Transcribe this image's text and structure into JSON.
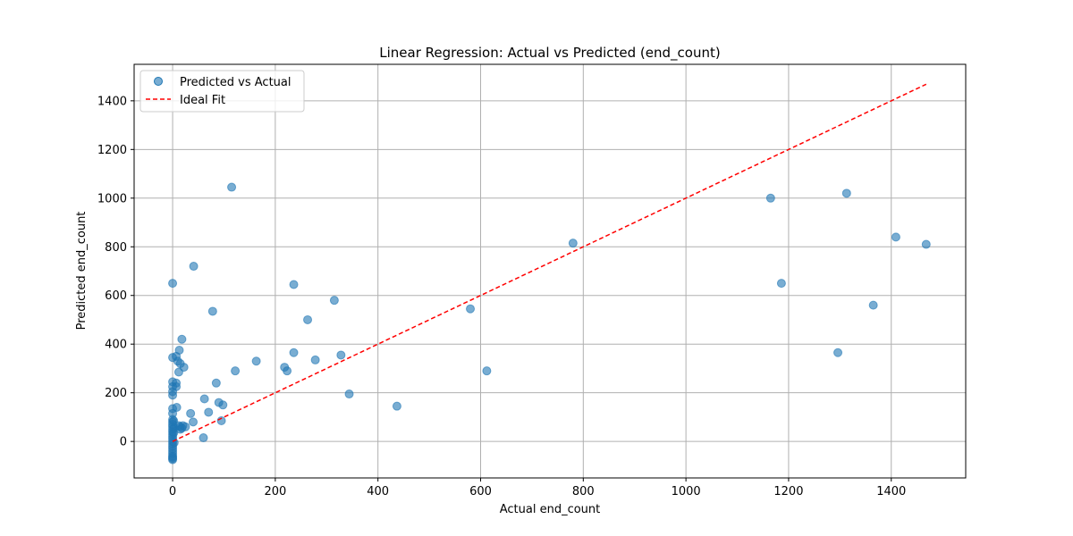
{
  "chart_data": {
    "type": "scatter",
    "title": "Linear Regression: Actual vs Predicted (end_count)",
    "xlabel": "Actual end_count",
    "ylabel": "Predicted end_count",
    "xlim": [
      -75,
      1545
    ],
    "ylim": [
      -150,
      1550
    ],
    "xticks": [
      0,
      200,
      400,
      600,
      800,
      1000,
      1200,
      1400
    ],
    "yticks": [
      0,
      200,
      400,
      600,
      800,
      1000,
      1200,
      1400
    ],
    "grid": true,
    "legend_position": "top-left",
    "colors": {
      "points": "#1f77b4",
      "ideal_fit": "#ff0000"
    },
    "series": [
      {
        "name": "Predicted vs Actual",
        "kind": "scatter",
        "points": [
          [
            0,
            650
          ],
          [
            0,
            345
          ],
          [
            0,
            245
          ],
          [
            0,
            225
          ],
          [
            0,
            205
          ],
          [
            0,
            190
          ],
          [
            0,
            135
          ],
          [
            0,
            115
          ],
          [
            0,
            90
          ],
          [
            0,
            80
          ],
          [
            0,
            70
          ],
          [
            0,
            60
          ],
          [
            0,
            50
          ],
          [
            0,
            40
          ],
          [
            0,
            30
          ],
          [
            0,
            20
          ],
          [
            0,
            10
          ],
          [
            0,
            0
          ],
          [
            0,
            -10
          ],
          [
            0,
            -20
          ],
          [
            0,
            -30
          ],
          [
            0,
            -40
          ],
          [
            0,
            -50
          ],
          [
            0,
            -60
          ],
          [
            0,
            -65
          ],
          [
            0,
            -70
          ],
          [
            0,
            -75
          ],
          [
            2,
            85
          ],
          [
            2,
            35
          ],
          [
            3,
            55
          ],
          [
            3,
            -5
          ],
          [
            7,
            350
          ],
          [
            7,
            240
          ],
          [
            7,
            225
          ],
          [
            8,
            140
          ],
          [
            10,
            330
          ],
          [
            12,
            285
          ],
          [
            13,
            375
          ],
          [
            15,
            320
          ],
          [
            12,
            65
          ],
          [
            15,
            60
          ],
          [
            18,
            55
          ],
          [
            20,
            65
          ],
          [
            25,
            60
          ],
          [
            15,
            50
          ],
          [
            18,
            420
          ],
          [
            22,
            305
          ],
          [
            35,
            115
          ],
          [
            40,
            80
          ],
          [
            41,
            720
          ],
          [
            60,
            15
          ],
          [
            62,
            175
          ],
          [
            70,
            120
          ],
          [
            78,
            535
          ],
          [
            85,
            240
          ],
          [
            90,
            160
          ],
          [
            95,
            85
          ],
          [
            98,
            150
          ],
          [
            115,
            1045
          ],
          [
            122,
            290
          ],
          [
            163,
            330
          ],
          [
            218,
            305
          ],
          [
            223,
            290
          ],
          [
            236,
            365
          ],
          [
            236,
            645
          ],
          [
            263,
            500
          ],
          [
            278,
            335
          ],
          [
            315,
            580
          ],
          [
            328,
            355
          ],
          [
            344,
            195
          ],
          [
            437,
            145
          ],
          [
            580,
            545
          ],
          [
            612,
            290
          ],
          [
            780,
            815
          ],
          [
            1165,
            1000
          ],
          [
            1186,
            650
          ],
          [
            1296,
            365
          ],
          [
            1313,
            1020
          ],
          [
            1365,
            560
          ],
          [
            1409,
            840
          ],
          [
            1468,
            810
          ]
        ]
      },
      {
        "name": "Ideal Fit",
        "kind": "line",
        "points": [
          [
            0,
            0
          ],
          [
            1468,
            1468
          ]
        ]
      }
    ]
  }
}
